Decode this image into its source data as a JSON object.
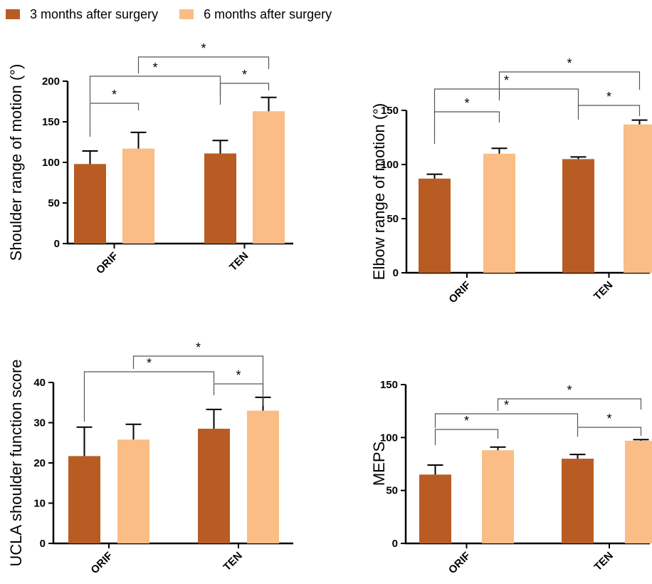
{
  "legend": {
    "series_3m": "3 months after surgery",
    "series_6m": "6 months after surgery"
  },
  "colors": {
    "series_3m": "#B85C24",
    "series_6m": "#F9BD85"
  },
  "chart_data": [
    {
      "type": "bar",
      "ylabel": "Shoulder range of motion (°)",
      "categories": [
        "ORIF",
        "TEN"
      ],
      "ylim": [
        0,
        200
      ],
      "yticks": [
        0,
        50,
        100,
        150,
        200
      ],
      "series": [
        {
          "name": "3 months after surgery",
          "values": [
            98,
            111
          ],
          "errors": [
            16,
            16
          ]
        },
        {
          "name": "6 months after surgery",
          "values": [
            117,
            163
          ],
          "errors": [
            20,
            17
          ]
        }
      ],
      "significance": [
        "*",
        "*",
        "*",
        "*"
      ]
    },
    {
      "type": "bar",
      "ylabel": "Elbow range of motion (°)",
      "categories": [
        "ORIF",
        "TEN"
      ],
      "ylim": [
        0,
        150
      ],
      "yticks": [
        0,
        50,
        100,
        150
      ],
      "series": [
        {
          "name": "3 months after surgery",
          "values": [
            87,
            105
          ],
          "errors": [
            4,
            2
          ]
        },
        {
          "name": "6 months after surgery",
          "values": [
            110,
            137
          ],
          "errors": [
            5,
            4
          ]
        }
      ],
      "significance": [
        "*",
        "*",
        "*",
        "*"
      ]
    },
    {
      "type": "bar",
      "ylabel": "UCLA shoulder function score",
      "categories": [
        "ORIF",
        "TEN"
      ],
      "ylim": [
        0,
        40
      ],
      "yticks": [
        0,
        10,
        20,
        30,
        40
      ],
      "series": [
        {
          "name": "3 months after surgery",
          "values": [
            21.7,
            28.5
          ],
          "errors": [
            7.2,
            4.8
          ]
        },
        {
          "name": "6 months after surgery",
          "values": [
            25.8,
            33
          ],
          "errors": [
            3.8,
            3.3
          ]
        }
      ],
      "significance": [
        "*",
        "*",
        "*"
      ]
    },
    {
      "type": "bar",
      "ylabel": "MEPS",
      "categories": [
        "ORIF",
        "TEN"
      ],
      "ylim": [
        0,
        150
      ],
      "yticks": [
        0,
        50,
        100,
        150
      ],
      "series": [
        {
          "name": "3 months after surgery",
          "values": [
            65,
            80
          ],
          "errors": [
            9,
            4
          ]
        },
        {
          "name": "6 months after surgery",
          "values": [
            88,
            97
          ],
          "errors": [
            3,
            1
          ]
        }
      ],
      "significance": [
        "*",
        "*",
        "*",
        "*"
      ]
    }
  ]
}
